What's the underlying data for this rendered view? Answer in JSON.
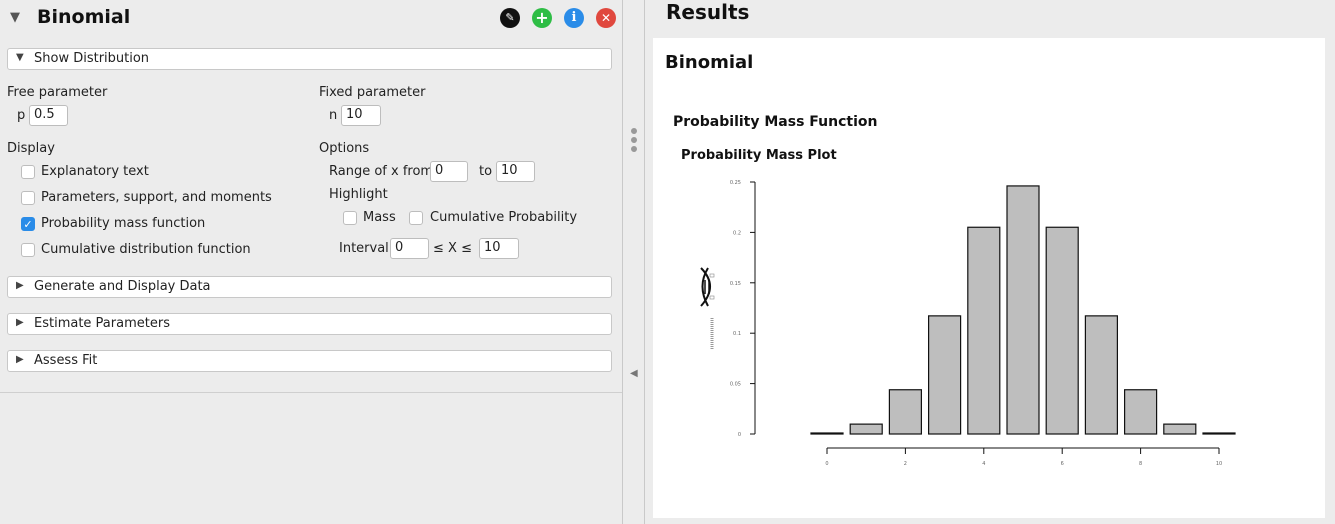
{
  "analysis": {
    "title": "Binomial",
    "caret": "▼",
    "icons": [
      "pencil-icon",
      "plus-icon",
      "info-icon",
      "close-icon"
    ]
  },
  "sections": {
    "show_distribution": "Show Distribution",
    "generate": "Generate and Display Data",
    "estimate": "Estimate Parameters",
    "assess": "Assess Fit"
  },
  "params": {
    "free_label": "Free parameter",
    "p_label": "p",
    "p_value": "0.5",
    "fixed_label": "Fixed parameter",
    "n_label": "n",
    "n_value": "10"
  },
  "display": {
    "label": "Display",
    "options": [
      {
        "label": "Explanatory text",
        "checked": false
      },
      {
        "label": "Parameters, support, and moments",
        "checked": false
      },
      {
        "label": "Probability mass function",
        "checked": true
      },
      {
        "label": "Cumulative distribution function",
        "checked": false
      }
    ]
  },
  "options": {
    "label": "Options",
    "range_label": "Range of x from",
    "range_from": "0",
    "to_label": "to",
    "range_to": "10",
    "highlight_label": "Highlight",
    "mass_label": "Mass",
    "cumprob_label": "Cumulative Probability",
    "interval_label": "Interval",
    "interval_from": "0",
    "interval_mid": "≤ X ≤",
    "interval_to": "10"
  },
  "results": {
    "title": "Results",
    "analysis_title": "Binomial",
    "section_title": "Probability Mass Function",
    "plot_title": "Probability Mass Plot"
  },
  "colors": {
    "bar_fill": "#bebebe",
    "check_blue": "#2a8ce8",
    "add_green": "#2ebd45",
    "close_red": "#e0483e"
  },
  "chart_data": {
    "type": "bar",
    "title": "Probability Mass Plot",
    "categories": [
      "0",
      "1",
      "2",
      "3",
      "4",
      "5",
      "6",
      "7",
      "8",
      "9",
      "10"
    ],
    "values": [
      0.001,
      0.0098,
      0.0439,
      0.1172,
      0.2051,
      0.2461,
      0.2051,
      0.1172,
      0.0439,
      0.0098,
      0.001
    ],
    "ylim": [
      0,
      0.25
    ],
    "yticks": [
      0,
      0.05,
      0.1,
      0.15,
      0.2,
      0.25
    ],
    "xticks": [
      0,
      2,
      4,
      6,
      8,
      10
    ],
    "xlabel": "",
    "ylabel": ""
  }
}
